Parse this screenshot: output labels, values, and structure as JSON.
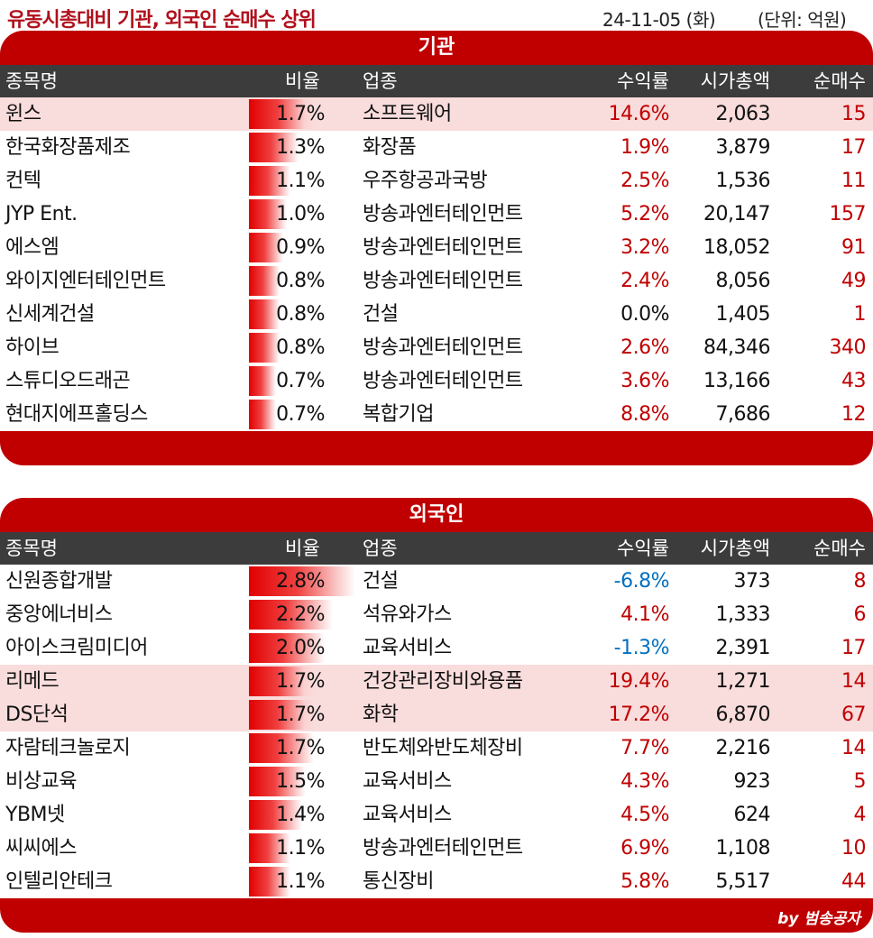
{
  "title": "유동시총대비 기관, 외국인 순매수 상위",
  "date": "24-11-05 (화)",
  "unit": "(단위: 억원)",
  "columns": {
    "name": "종목명",
    "ratio": "비율",
    "industry": "업종",
    "return": "수익률",
    "market_cap": "시가총액",
    "net_buy": "순매수"
  },
  "institution": {
    "title": "기관",
    "rows": [
      {
        "name": "윈스",
        "ratio": "1.7%",
        "ratio_value": 1.7,
        "industry": "소프트웨어",
        "return": "14.6%",
        "market_cap": "2,063",
        "net_buy": "15",
        "highlight": true,
        "sign": "pos"
      },
      {
        "name": "한국화장품제조",
        "ratio": "1.3%",
        "ratio_value": 1.3,
        "industry": "화장품",
        "return": "1.9%",
        "market_cap": "3,879",
        "net_buy": "17",
        "highlight": false,
        "sign": "pos"
      },
      {
        "name": "컨텍",
        "ratio": "1.1%",
        "ratio_value": 1.1,
        "industry": "우주항공과국방",
        "return": "2.5%",
        "market_cap": "1,536",
        "net_buy": "11",
        "highlight": false,
        "sign": "pos"
      },
      {
        "name": "JYP Ent.",
        "ratio": "1.0%",
        "ratio_value": 1.0,
        "industry": "방송과엔터테인먼트",
        "return": "5.2%",
        "market_cap": "20,147",
        "net_buy": "157",
        "highlight": false,
        "sign": "pos"
      },
      {
        "name": "에스엠",
        "ratio": "0.9%",
        "ratio_value": 0.9,
        "industry": "방송과엔터테인먼트",
        "return": "3.2%",
        "market_cap": "18,052",
        "net_buy": "91",
        "highlight": false,
        "sign": "pos"
      },
      {
        "name": "와이지엔터테인먼트",
        "ratio": "0.8%",
        "ratio_value": 0.8,
        "industry": "방송과엔터테인먼트",
        "return": "2.4%",
        "market_cap": "8,056",
        "net_buy": "49",
        "highlight": false,
        "sign": "pos"
      },
      {
        "name": "신세계건설",
        "ratio": "0.8%",
        "ratio_value": 0.8,
        "industry": "건설",
        "return": "0.0%",
        "market_cap": "1,405",
        "net_buy": "1",
        "highlight": false,
        "sign": "zero"
      },
      {
        "name": "하이브",
        "ratio": "0.8%",
        "ratio_value": 0.8,
        "industry": "방송과엔터테인먼트",
        "return": "2.6%",
        "market_cap": "84,346",
        "net_buy": "340",
        "highlight": false,
        "sign": "pos"
      },
      {
        "name": "스튜디오드래곤",
        "ratio": "0.7%",
        "ratio_value": 0.7,
        "industry": "방송과엔터테인먼트",
        "return": "3.6%",
        "market_cap": "13,166",
        "net_buy": "43",
        "highlight": false,
        "sign": "pos"
      },
      {
        "name": "현대지에프홀딩스",
        "ratio": "0.7%",
        "ratio_value": 0.7,
        "industry": "복합기업",
        "return": "8.8%",
        "market_cap": "7,686",
        "net_buy": "12",
        "highlight": false,
        "sign": "pos"
      }
    ]
  },
  "foreign": {
    "title": "외국인",
    "rows": [
      {
        "name": "신원종합개발",
        "ratio": "2.8%",
        "ratio_value": 2.8,
        "industry": "건설",
        "return": "-6.8%",
        "market_cap": "373",
        "net_buy": "8",
        "highlight": false,
        "sign": "neg"
      },
      {
        "name": "중앙에너비스",
        "ratio": "2.2%",
        "ratio_value": 2.2,
        "industry": "석유와가스",
        "return": "4.1%",
        "market_cap": "1,333",
        "net_buy": "6",
        "highlight": false,
        "sign": "pos"
      },
      {
        "name": "아이스크림미디어",
        "ratio": "2.0%",
        "ratio_value": 2.0,
        "industry": "교육서비스",
        "return": "-1.3%",
        "market_cap": "2,391",
        "net_buy": "17",
        "highlight": false,
        "sign": "neg"
      },
      {
        "name": "리메드",
        "ratio": "1.7%",
        "ratio_value": 1.7,
        "industry": "건강관리장비와용품",
        "return": "19.4%",
        "market_cap": "1,271",
        "net_buy": "14",
        "highlight": true,
        "sign": "pos"
      },
      {
        "name": "DS단석",
        "ratio": "1.7%",
        "ratio_value": 1.7,
        "industry": "화학",
        "return": "17.2%",
        "market_cap": "6,870",
        "net_buy": "67",
        "highlight": true,
        "sign": "pos"
      },
      {
        "name": "자람테크놀로지",
        "ratio": "1.7%",
        "ratio_value": 1.7,
        "industry": "반도체와반도체장비",
        "return": "7.7%",
        "market_cap": "2,216",
        "net_buy": "14",
        "highlight": false,
        "sign": "pos"
      },
      {
        "name": "비상교육",
        "ratio": "1.5%",
        "ratio_value": 1.5,
        "industry": "교육서비스",
        "return": "4.3%",
        "market_cap": "923",
        "net_buy": "5",
        "highlight": false,
        "sign": "pos"
      },
      {
        "name": "YBM넷",
        "ratio": "1.4%",
        "ratio_value": 1.4,
        "industry": "교육서비스",
        "return": "4.5%",
        "market_cap": "624",
        "net_buy": "4",
        "highlight": false,
        "sign": "pos"
      },
      {
        "name": "씨씨에스",
        "ratio": "1.1%",
        "ratio_value": 1.1,
        "industry": "방송과엔터테인먼트",
        "return": "6.9%",
        "market_cap": "1,108",
        "net_buy": "10",
        "highlight": false,
        "sign": "pos"
      },
      {
        "name": "인텔리안테크",
        "ratio": "1.1%",
        "ratio_value": 1.1,
        "industry": "통신장비",
        "return": "5.8%",
        "market_cap": "5,517",
        "net_buy": "44",
        "highlight": false,
        "sign": "pos"
      }
    ],
    "credit": "by 범송공자"
  },
  "colors": {
    "accent": "#c00000",
    "header_bg": "#3c3c3c",
    "highlight_row": "#f9dcdc",
    "positive": "#c00000",
    "negative": "#0070c0"
  }
}
